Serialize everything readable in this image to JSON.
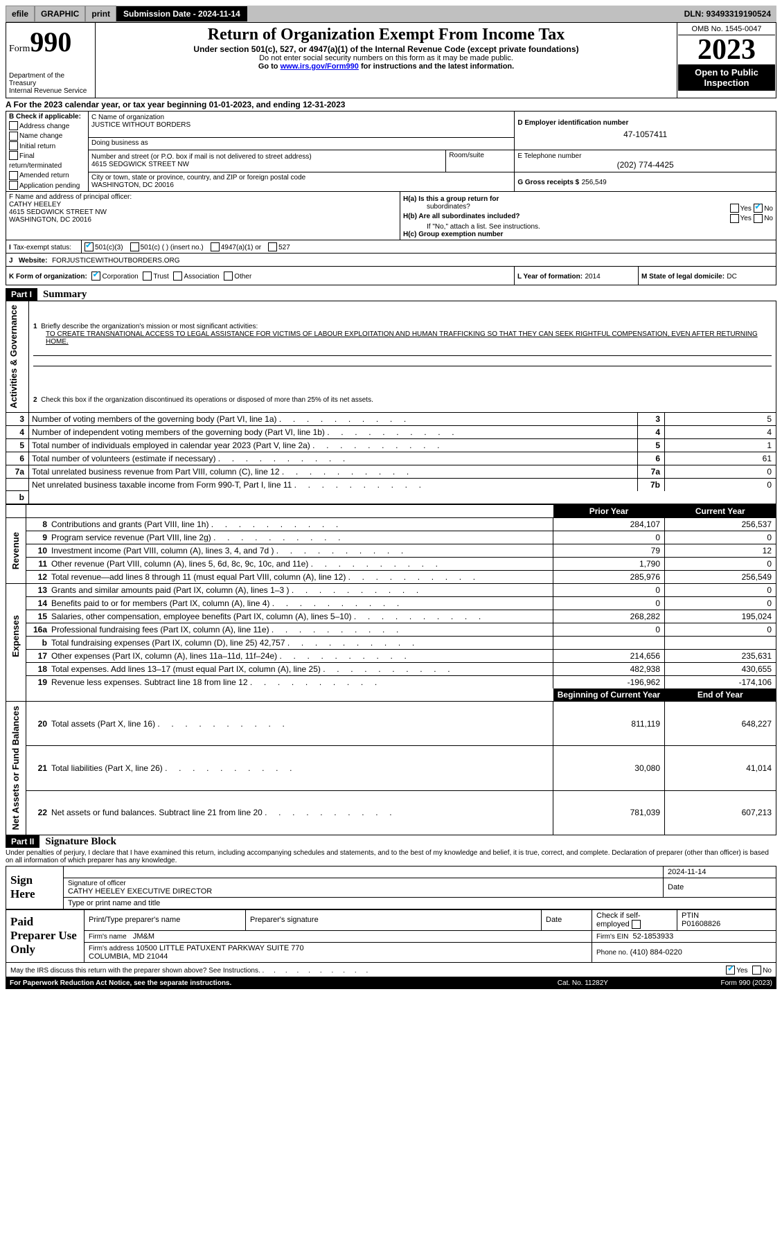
{
  "headerbar": {
    "efile": "efile",
    "graphic": "GRAPHIC",
    "print": "print",
    "submission": "Submission Date - 2024-11-14",
    "dln": "DLN: 93493319190524"
  },
  "title": {
    "form": "Form",
    "num": "990",
    "main": "Return of Organization Exempt From Income Tax",
    "under": "Under section 501(c), 527, or 4947(a)(1) of the Internal Revenue Code (except private foundations)",
    "ssn": "Do not enter social security numbers on this form as it may be made public.",
    "goto": "Go to ",
    "link": "www.irs.gov/Form990",
    "goto2": " for instructions and the latest information.",
    "dept": "Department of the Treasury",
    "irs": "Internal Revenue Service"
  },
  "yearbox": {
    "omb": "OMB No. 1545-0047",
    "year": "2023",
    "open": "Open to Public Inspection"
  },
  "period": {
    "label": "A For the 2023 calendar year, or tax year beginning ",
    "begin": "01-01-2023",
    "mid": ", and ending ",
    "end": "12-31-2023"
  },
  "boxB": {
    "title": "B Check if applicable:",
    "items": [
      "Address change",
      "Name change",
      "Initial return",
      "Final return/terminated",
      "Amended return",
      "Application pending"
    ]
  },
  "boxC": {
    "label": "C Name of organization",
    "name": "JUSTICE WITHOUT BORDERS",
    "dba": "Doing business as",
    "street_label": "Number and street (or P.O. box if mail is not delivered to street address)",
    "street": "4615 SEDGWICK STREET NW",
    "room_label": "Room/suite",
    "room": "",
    "city_label": "City or town, state or province, country, and ZIP or foreign postal code",
    "city": "WASHINGTON, DC  20016"
  },
  "boxD": {
    "label": "D Employer identification number",
    "ein": "47-1057411"
  },
  "boxE": {
    "label": "E Telephone number",
    "phone": "(202) 774-4425"
  },
  "boxG": {
    "label": "G Gross receipts $",
    "amount": "256,549"
  },
  "boxF": {
    "label": "F  Name and address of principal officer:",
    "name": "CATHY HEELEY",
    "addr1": "4615 SEDGWICK STREET NW",
    "addr2": "WASHINGTON, DC  20016"
  },
  "boxH": {
    "a": "H(a)  Is this a group return for",
    "a2": "subordinates?",
    "b": "H(b)  Are all subordinates included?",
    "note": "If \"No,\" attach a list. See instructions.",
    "c": "H(c)  Group exemption number",
    "yes": "Yes",
    "no": "No"
  },
  "boxI": {
    "label": "Tax-exempt status:",
    "c3": "501(c)(3)",
    "c": "501(c) (  ) (insert no.)",
    "a1": "4947(a)(1) or",
    "527": "527"
  },
  "boxJ": {
    "label": "Website:",
    "value": "FORJUSTICEWITHOUTBORDERS.ORG"
  },
  "boxK": {
    "label": "K Form of organization:",
    "corp": "Corporation",
    "trust": "Trust",
    "assoc": "Association",
    "other": "Other"
  },
  "boxL": {
    "label": "L Year of formation:",
    "value": "2014"
  },
  "boxM": {
    "label": "M State of legal domicile:",
    "value": "DC"
  },
  "part1": {
    "part": "Part I",
    "title": "Summary",
    "sideA": "Activities & Governance",
    "sideR": "Revenue",
    "sideE": "Expenses",
    "sideN": "Net Assets or Fund Balances"
  },
  "summary": {
    "l1": {
      "t": "Briefly describe the organization's mission or most significant activities:",
      "mission": "TO CREATE TRANSNATIONAL ACCESS TO LEGAL ASSISTANCE FOR VICTIMS OF LABOUR EXPLOITATION AND HUMAN TRAFFICKING SO THAT THEY CAN SEEK RIGHTFUL COMPENSATION, EVEN AFTER RETURNING HOME."
    },
    "l2": "Check this box      if the organization discontinued its operations or disposed of more than 25% of its net assets.",
    "rows37": [
      {
        "n": "3",
        "t": "Number of voting members of the governing body (Part VI, line 1a)",
        "k": "3",
        "v": "5"
      },
      {
        "n": "4",
        "t": "Number of independent voting members of the governing body (Part VI, line 1b)",
        "k": "4",
        "v": "4"
      },
      {
        "n": "5",
        "t": "Total number of individuals employed in calendar year 2023 (Part V, line 2a)",
        "k": "5",
        "v": "1"
      },
      {
        "n": "6",
        "t": "Total number of volunteers (estimate if necessary)",
        "k": "6",
        "v": "61"
      },
      {
        "n": "7a",
        "t": "Total unrelated business revenue from Part VIII, column (C), line 12",
        "k": "7a",
        "v": "0"
      },
      {
        "n": "",
        "t": "Net unrelated business taxable income from Form 990-T, Part I, line 11",
        "k": "7b",
        "v": "0"
      }
    ],
    "pycy": {
      "prior": "Prior Year",
      "current": "Current Year",
      "begin": "Beginning of Current Year",
      "end": "End of Year"
    },
    "rev": [
      {
        "n": "8",
        "t": "Contributions and grants (Part VIII, line 1h)",
        "p": "284,107",
        "c": "256,537"
      },
      {
        "n": "9",
        "t": "Program service revenue (Part VIII, line 2g)",
        "p": "0",
        "c": "0"
      },
      {
        "n": "10",
        "t": "Investment income (Part VIII, column (A), lines 3, 4, and 7d )",
        "p": "79",
        "c": "12"
      },
      {
        "n": "11",
        "t": "Other revenue (Part VIII, column (A), lines 5, 6d, 8c, 9c, 10c, and 11e)",
        "p": "1,790",
        "c": "0"
      },
      {
        "n": "12",
        "t": "Total revenue—add lines 8 through 11 (must equal Part VIII, column (A), line 12)",
        "p": "285,976",
        "c": "256,549"
      }
    ],
    "exp": [
      {
        "n": "13",
        "t": "Grants and similar amounts paid (Part IX, column (A), lines 1–3 )",
        "p": "0",
        "c": "0"
      },
      {
        "n": "14",
        "t": "Benefits paid to or for members (Part IX, column (A), line 4)",
        "p": "0",
        "c": "0"
      },
      {
        "n": "15",
        "t": "Salaries, other compensation, employee benefits (Part IX, column (A), lines 5–10)",
        "p": "268,282",
        "c": "195,024"
      },
      {
        "n": "16a",
        "t": "Professional fundraising fees (Part IX, column (A), line 11e)",
        "p": "0",
        "c": "0"
      },
      {
        "n": "b",
        "t": "Total fundraising expenses (Part IX, column (D), line 25) 42,757",
        "p": "",
        "c": ""
      },
      {
        "n": "17",
        "t": "Other expenses (Part IX, column (A), lines 11a–11d, 11f–24e)",
        "p": "214,656",
        "c": "235,631"
      },
      {
        "n": "18",
        "t": "Total expenses. Add lines 13–17 (must equal Part IX, column (A), line 25)",
        "p": "482,938",
        "c": "430,655"
      },
      {
        "n": "19",
        "t": "Revenue less expenses. Subtract line 18 from line 12",
        "p": "-196,962",
        "c": "-174,106"
      }
    ],
    "net": [
      {
        "n": "20",
        "t": "Total assets (Part X, line 16)",
        "p": "811,119",
        "c": "648,227"
      },
      {
        "n": "21",
        "t": "Total liabilities (Part X, line 26)",
        "p": "30,080",
        "c": "41,014"
      },
      {
        "n": "22",
        "t": "Net assets or fund balances. Subtract line 21 from line 20",
        "p": "781,039",
        "c": "607,213"
      }
    ]
  },
  "part2": {
    "part": "Part II",
    "title": "Signature Block",
    "penalty": "Under penalties of perjury, I declare that I have examined this return, including accompanying schedules and statements, and to the best of my knowledge and belief, it is true, correct, and complete. Declaration of preparer (other than officer) is based on all information of which preparer has any knowledge."
  },
  "sign": {
    "here": "Sign Here",
    "sigoff": "Signature of officer",
    "date": "Date",
    "sigdate": "2024-11-14",
    "officer": "CATHY HEELEY  EXECUTIVE DIRECTOR",
    "type": "Type or print name and title"
  },
  "paid": {
    "title": "Paid Preparer Use Only",
    "prepname_l": "Print/Type preparer's name",
    "prepsig_l": "Preparer's signature",
    "date_l": "Date",
    "check": "Check        if self-employed",
    "ptin_l": "PTIN",
    "ptin": "P01608826",
    "firmname_l": "Firm's name",
    "firmname": "JM&M",
    "firmein_l": "Firm's EIN",
    "firmein": "52-1853933",
    "firmaddr_l": "Firm's address",
    "firmaddr": "10500 LITTLE PATUXENT PARKWAY SUITE 770\nCOLUMBIA, MD  21044",
    "phone_l": "Phone no.",
    "phone": "(410) 884-0220"
  },
  "discuss": {
    "t": "May the IRS discuss this return with the preparer shown above? See Instructions.",
    "yes": "Yes",
    "no": "No"
  },
  "footer": {
    "pra": "For Paperwork Reduction Act Notice, see the separate instructions.",
    "cat": "Cat. No. 11282Y",
    "form": "Form 990 (2023)"
  }
}
